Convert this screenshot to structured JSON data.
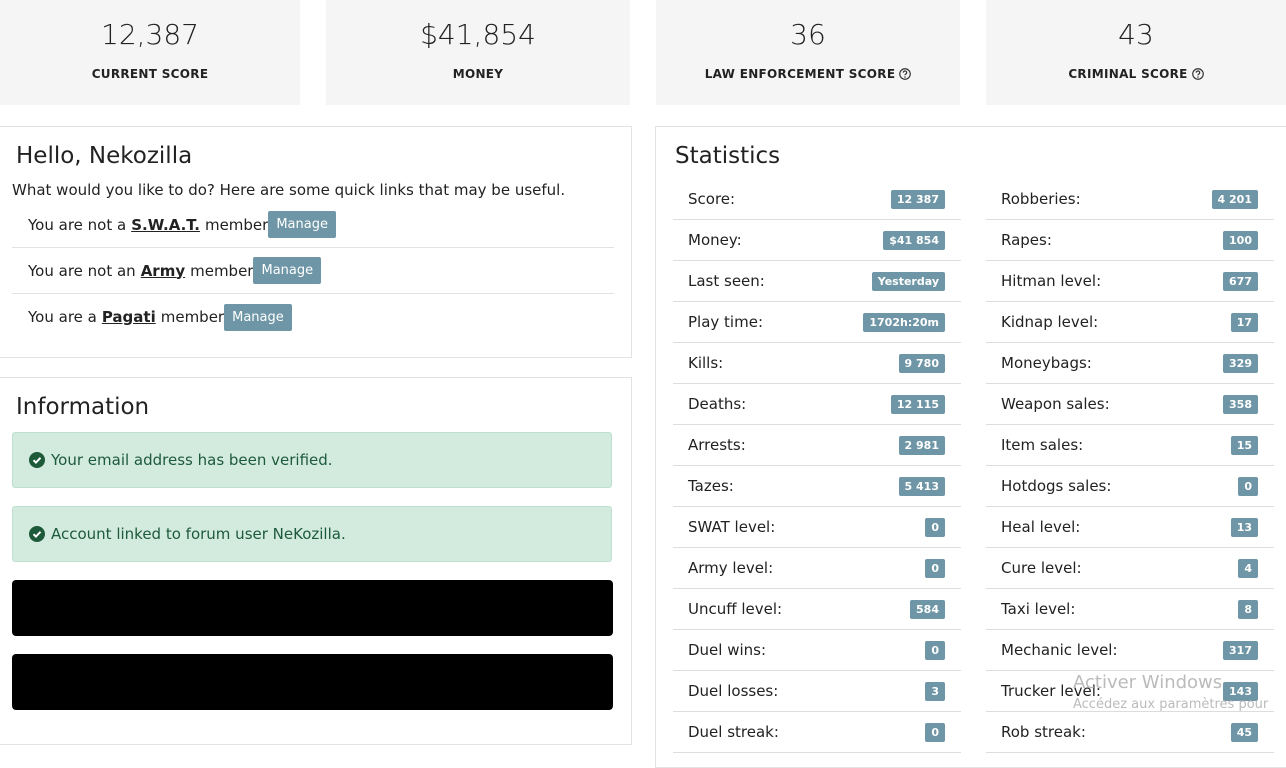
{
  "cards": [
    {
      "value": "12,387",
      "label": "CURRENT SCORE"
    },
    {
      "value": "$41,854",
      "label": "MONEY"
    },
    {
      "value": "36",
      "label": "LAW ENFORCEMENT SCORE"
    },
    {
      "value": "43",
      "label": "CRIMINAL SCORE"
    }
  ],
  "greeting": {
    "title": "Hello, Nekozilla",
    "subtitle": "What would you like to do? Here are some quick links that may be useful.",
    "memberships": [
      {
        "prefix": "You are not a",
        "group": "S.W.A.T.",
        "suffix": "member",
        "button": "Manage"
      },
      {
        "prefix": "You are not an",
        "group": "Army",
        "suffix": "member",
        "button": "Manage"
      },
      {
        "prefix": "You are a",
        "group": "Pagati",
        "suffix": "member",
        "button": "Manage"
      }
    ]
  },
  "information": {
    "title": "Information",
    "alerts": [
      "Your email address has been verified.",
      "Account linked to forum user NeKozilla."
    ]
  },
  "statistics": {
    "title": "Statistics",
    "left": [
      {
        "label": "Score:",
        "value": "12 387"
      },
      {
        "label": "Money:",
        "value": "$41 854"
      },
      {
        "label": "Last seen:",
        "value": "Yesterday"
      },
      {
        "label": "Play time:",
        "value": "1702h:20m"
      },
      {
        "label": "Kills:",
        "value": "9 780"
      },
      {
        "label": "Deaths:",
        "value": "12 115"
      },
      {
        "label": "Arrests:",
        "value": "2 981"
      },
      {
        "label": "Tazes:",
        "value": "5 413"
      },
      {
        "label": "SWAT level:",
        "value": "0"
      },
      {
        "label": "Army level:",
        "value": "0"
      },
      {
        "label": "Uncuff level:",
        "value": "584"
      },
      {
        "label": "Duel wins:",
        "value": "0"
      },
      {
        "label": "Duel losses:",
        "value": "3"
      },
      {
        "label": "Duel streak:",
        "value": "0"
      }
    ],
    "right": [
      {
        "label": "Robberies:",
        "value": "4 201"
      },
      {
        "label": "Rapes:",
        "value": "100"
      },
      {
        "label": "Hitman level:",
        "value": "677"
      },
      {
        "label": "Kidnap level:",
        "value": "17"
      },
      {
        "label": "Moneybags:",
        "value": "329"
      },
      {
        "label": "Weapon sales:",
        "value": "358"
      },
      {
        "label": "Item sales:",
        "value": "15"
      },
      {
        "label": "Hotdogs sales:",
        "value": "0"
      },
      {
        "label": "Heal level:",
        "value": "13"
      },
      {
        "label": "Cure level:",
        "value": "4"
      },
      {
        "label": "Taxi level:",
        "value": "8"
      },
      {
        "label": "Mechanic level:",
        "value": "317"
      },
      {
        "label": "Trucker level:",
        "value": "143"
      },
      {
        "label": "Rob streak:",
        "value": "45"
      }
    ]
  },
  "watermark": {
    "title": "Activer Windows",
    "subtitle": "Accédez aux paramètres pour"
  }
}
